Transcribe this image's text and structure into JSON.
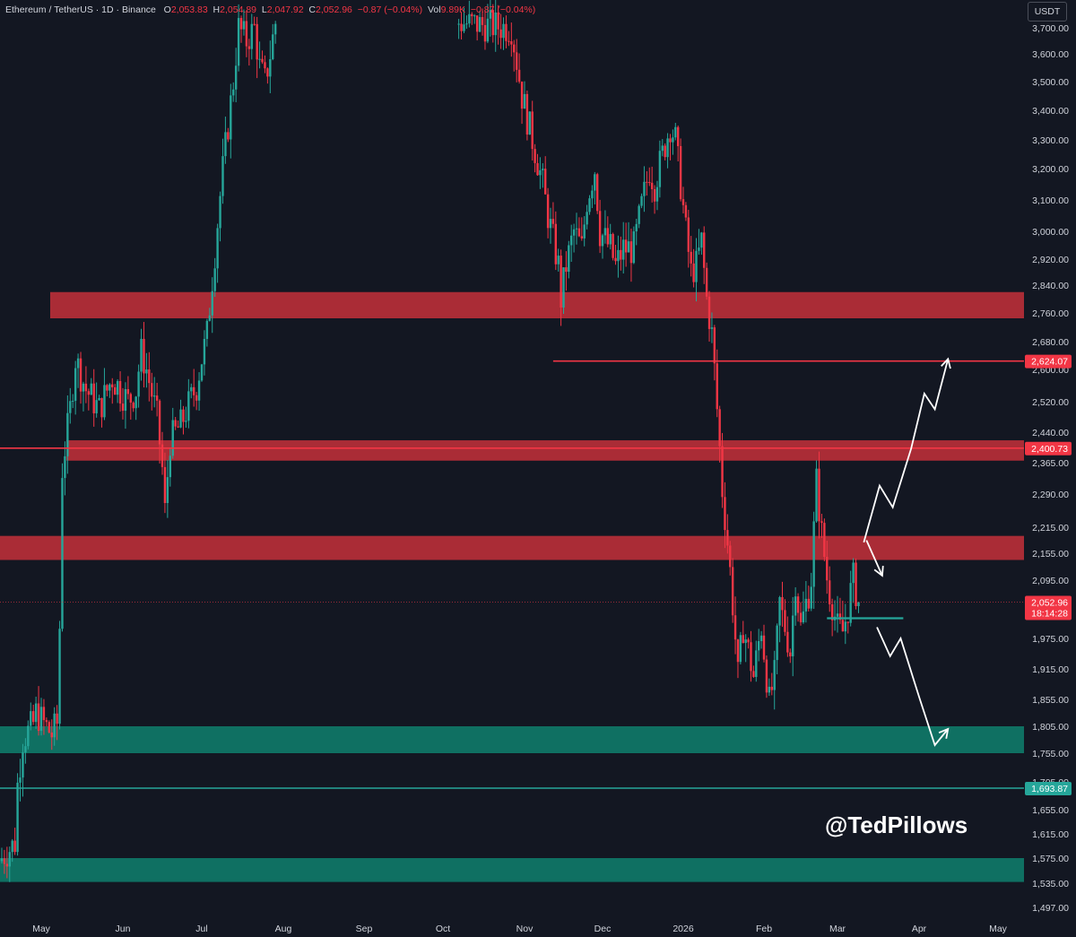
{
  "header": {
    "symbol": "Ethereum / TetherUS · 1D · Binance",
    "open_label": "O",
    "open": "2,053.83",
    "high_label": "H",
    "high": "2,054.89",
    "low_label": "L",
    "low": "2,047.92",
    "close_label": "C",
    "close": "2,052.96",
    "change": "−0.87 (−0.04%)",
    "vol_label": "Vol",
    "vol": "9.89K",
    "vol_change": "−0.87 (−0.04%)"
  },
  "currency": "USDT",
  "watermark": "@TedPillows",
  "colors": {
    "background": "#131722",
    "up": "#26a69a",
    "down": "#f23645",
    "resistance_zone": "#b22d38",
    "support_zone": "#0f7566",
    "axis_text": "#d1d4dc"
  },
  "chart_data": {
    "type": "candlestick",
    "instrument": "Ethereum / TetherUS",
    "interval": "1D",
    "exchange": "Binance",
    "y_axis": {
      "min": 1497,
      "max": 3750,
      "ticks": [
        {
          "v": 3700,
          "label": "3,700.00"
        },
        {
          "v": 3600,
          "label": "3,600.00"
        },
        {
          "v": 3500,
          "label": "3,500.00"
        },
        {
          "v": 3400,
          "label": "3,400.00"
        },
        {
          "v": 3300,
          "label": "3,300.00"
        },
        {
          "v": 3200,
          "label": "3,200.00"
        },
        {
          "v": 3100,
          "label": "3,100.00"
        },
        {
          "v": 3000,
          "label": "3,000.00"
        },
        {
          "v": 2920,
          "label": "2,920.00"
        },
        {
          "v": 2840,
          "label": "2,840.00"
        },
        {
          "v": 2760,
          "label": "2,760.00"
        },
        {
          "v": 2680,
          "label": "2,680.00"
        },
        {
          "v": 2600,
          "label": "2,600.00"
        },
        {
          "v": 2520,
          "label": "2,520.00"
        },
        {
          "v": 2440,
          "label": "2,440.00"
        },
        {
          "v": 2365,
          "label": "2,365.00"
        },
        {
          "v": 2290,
          "label": "2,290.00"
        },
        {
          "v": 2215,
          "label": "2,215.00"
        },
        {
          "v": 2155,
          "label": "2,155.00"
        },
        {
          "v": 2095,
          "label": "2,095.00"
        },
        {
          "v": 2035,
          "label": "2,035.00"
        },
        {
          "v": 1975,
          "label": "1,975.00"
        },
        {
          "v": 1915,
          "label": "1,915.00"
        },
        {
          "v": 1855,
          "label": "1,855.00"
        },
        {
          "v": 1805,
          "label": "1,805.00"
        },
        {
          "v": 1755,
          "label": "1,755.00"
        },
        {
          "v": 1705,
          "label": "1,705.00"
        },
        {
          "v": 1655,
          "label": "1,655.00"
        },
        {
          "v": 1615,
          "label": "1,615.00"
        },
        {
          "v": 1575,
          "label": "1,575.00"
        },
        {
          "v": 1535,
          "label": "1,535.00"
        },
        {
          "v": 1497,
          "label": "1,497.00"
        }
      ]
    },
    "x_axis": {
      "labels": [
        {
          "label": "May",
          "day": 31
        },
        {
          "label": "Jun",
          "day": 62
        },
        {
          "label": "Jul",
          "day": 92
        },
        {
          "label": "Aug",
          "day": 123
        },
        {
          "label": "Sep",
          "day": 154
        },
        {
          "label": "Oct",
          "day": 184
        },
        {
          "label": "Nov",
          "day": 215
        },
        {
          "label": "Dec",
          "day": 245
        },
        {
          "label": "2026",
          "day": 276
        },
        {
          "label": "Feb",
          "day": 307
        },
        {
          "label": "Mar",
          "day": 335
        },
        {
          "label": "Apr",
          "day": 366
        },
        {
          "label": "May",
          "day": 396
        }
      ],
      "visible_days": [
        15,
        408
      ]
    },
    "price_path": [
      [
        15,
        1570
      ],
      [
        21,
        1600
      ],
      [
        22,
        1700
      ],
      [
        24,
        1780
      ],
      [
        28,
        1810
      ],
      [
        29,
        1830
      ],
      [
        35,
        1790
      ],
      [
        37,
        1810
      ],
      [
        38,
        2000
      ],
      [
        39,
        2350
      ],
      [
        42,
        2500
      ],
      [
        44,
        2630
      ],
      [
        48,
        2550
      ],
      [
        53,
        2500
      ],
      [
        58,
        2580
      ],
      [
        64,
        2520
      ],
      [
        67,
        2550
      ],
      [
        69,
        2650
      ],
      [
        71,
        2600
      ],
      [
        75,
        2480
      ],
      [
        77,
        2350
      ],
      [
        78,
        2250
      ],
      [
        80,
        2420
      ],
      [
        84,
        2460
      ],
      [
        90,
        2560
      ],
      [
        94,
        2700
      ],
      [
        97,
        2940
      ],
      [
        100,
        3200
      ],
      [
        104,
        3500
      ],
      [
        106,
        3700
      ],
      [
        109,
        3650
      ],
      [
        112,
        3700
      ],
      [
        114,
        3550
      ],
      [
        116,
        3500
      ],
      [
        118,
        3600
      ],
      [
        120,
        3720
      ],
      [
        190,
        3720
      ],
      [
        210,
        3700
      ],
      [
        214,
        3450
      ],
      [
        218,
        3300
      ],
      [
        222,
        3150
      ],
      [
        224,
        3050
      ],
      [
        228,
        2900
      ],
      [
        229,
        2800
      ],
      [
        231,
        2900
      ],
      [
        234,
        3000
      ],
      [
        237,
        2950
      ],
      [
        239,
        3100
      ],
      [
        242,
        3200
      ],
      [
        244,
        3000
      ],
      [
        248,
        2950
      ],
      [
        250,
        2900
      ],
      [
        253,
        2950
      ],
      [
        257,
        2950
      ],
      [
        260,
        3080
      ],
      [
        263,
        3200
      ],
      [
        265,
        3150
      ],
      [
        268,
        3250
      ],
      [
        271,
        3350
      ],
      [
        273,
        3300
      ],
      [
        275,
        3150
      ],
      [
        277,
        3000
      ],
      [
        279,
        2880
      ],
      [
        281,
        2900
      ],
      [
        283,
        2970
      ],
      [
        285,
        2800
      ],
      [
        287,
        2700
      ],
      [
        289,
        2500
      ],
      [
        291,
        2300
      ],
      [
        293,
        2180
      ],
      [
        295,
        2050
      ],
      [
        297,
        1900
      ],
      [
        299,
        2000
      ],
      [
        301,
        1950
      ],
      [
        303,
        1900
      ],
      [
        306,
        2000
      ],
      [
        309,
        1850
      ],
      [
        311,
        1900
      ],
      [
        313,
        2050
      ],
      [
        315,
        2000
      ],
      [
        317,
        1950
      ],
      [
        319,
        2100
      ],
      [
        321,
        2000
      ],
      [
        323,
        2050
      ],
      [
        325,
        2100
      ],
      [
        327,
        2320
      ],
      [
        329,
        2200
      ],
      [
        331,
        2100
      ],
      [
        333,
        2050
      ],
      [
        335,
        2000
      ],
      [
        337,
        1990
      ],
      [
        339,
        2040
      ],
      [
        341,
        2100
      ],
      [
        343,
        2053
      ]
    ],
    "current_price": {
      "value": 2052.96,
      "label": "2,052.96",
      "countdown": "18:14:28"
    },
    "resistance_zones": [
      {
        "from": 2745,
        "to": 2820
      },
      {
        "from": 2370,
        "to": 2420
      },
      {
        "from": 2140,
        "to": 2195
      }
    ],
    "support_zones": [
      {
        "from": 1755,
        "to": 1805
      },
      {
        "from": 1537,
        "to": 1575
      }
    ],
    "horizontal_levels": [
      {
        "value": 2624.07,
        "label": "2,624.07",
        "color": "#f23645",
        "from_day": 226
      },
      {
        "value": 2400.73,
        "label": "2,400.73",
        "color": "#f23645"
      },
      {
        "value": 1693.87,
        "label": "1,693.87",
        "color": "#26a69a"
      }
    ],
    "range_line": {
      "value": 2020,
      "from_day": 331,
      "to_day": 360
    },
    "projections": [
      {
        "name": "bullish",
        "points": [
          [
            345,
            2180
          ],
          [
            351,
            2310
          ],
          [
            356,
            2260
          ],
          [
            363,
            2400
          ],
          [
            368,
            2540
          ],
          [
            372,
            2500
          ],
          [
            377,
            2630
          ]
        ]
      },
      {
        "name": "pullback",
        "points": [
          [
            346,
            2185
          ],
          [
            352,
            2105
          ]
        ]
      },
      {
        "name": "bearish",
        "points": [
          [
            350,
            2000
          ],
          [
            355,
            1940
          ],
          [
            359,
            1975
          ],
          [
            366,
            1860
          ],
          [
            372,
            1770
          ],
          [
            377,
            1800
          ]
        ]
      }
    ]
  }
}
